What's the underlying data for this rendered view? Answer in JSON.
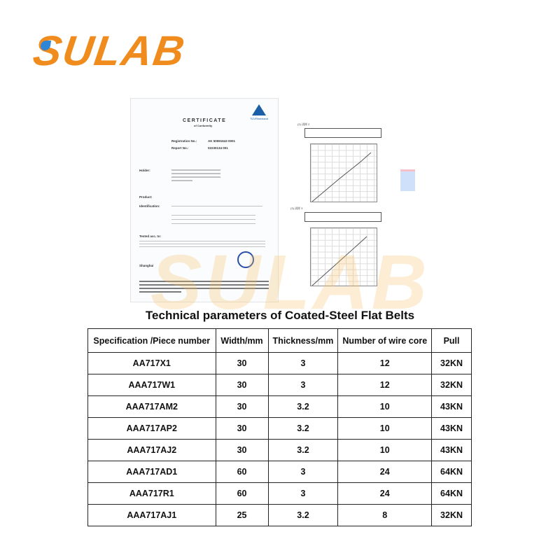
{
  "brand": {
    "logo_text": "SULAB",
    "accent": "#f08c1e",
    "dot_color": "#2f86d6"
  },
  "certificate": {
    "title": "CERTIFICATE",
    "subtitle": "of Conformity",
    "issuer": "TÜVRheinland",
    "registration_label": "Registration No.:",
    "registration_value": "AK 50591643 0001",
    "report_label": "Report No.:",
    "report_value": "02230134 001",
    "holder_label": "Holder:",
    "product_label": "Product:",
    "identification_label": "Identification:",
    "tested_label": "Tested acc. to:",
    "place": "Shanghai"
  },
  "report": {
    "section2": "(2) 试样 2",
    "section3": "(3) 试样 3"
  },
  "table": {
    "title": "Technical parameters of Coated-Steel Flat Belts",
    "headers": [
      "Specification /Piece number",
      "Width/mm",
      "Thickness/mm",
      "Number of wire core",
      "Pull"
    ],
    "rows": [
      [
        "AA717X1",
        "30",
        "3",
        "12",
        "32KN"
      ],
      [
        "AAA717W1",
        "30",
        "3",
        "12",
        "32KN"
      ],
      [
        "AAA717AM2",
        "30",
        "3.2",
        "10",
        "43KN"
      ],
      [
        "AAA717AP2",
        "30",
        "3.2",
        "10",
        "43KN"
      ],
      [
        "AAA717AJ2",
        "30",
        "3.2",
        "10",
        "43KN"
      ],
      [
        "AAA717AD1",
        "60",
        "3",
        "24",
        "64KN"
      ],
      [
        "AAA717R1",
        "60",
        "3",
        "24",
        "64KN"
      ],
      [
        "AAA717AJ1",
        "25",
        "3.2",
        "8",
        "32KN"
      ]
    ]
  }
}
